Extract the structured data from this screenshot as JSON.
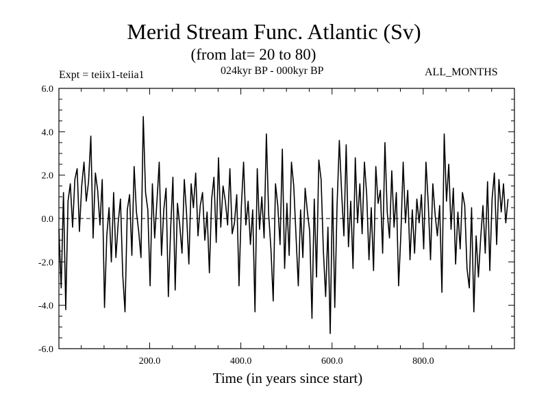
{
  "chart_data": {
    "type": "line",
    "title": "Merid Stream Func. Atlantic (Sv)",
    "subtitle": "(from lat= 20 to 80)",
    "annotations": {
      "left": "Expt = teiix1-teiia1",
      "center": "024kyr BP - 000kyr BP",
      "right": "ALL_MONTHS"
    },
    "xlabel": "Time (in years since start)",
    "ylabel": "",
    "xlim": [
      1,
      1000
    ],
    "ylim": [
      -6,
      6
    ],
    "xticks": [
      200,
      400,
      600,
      800
    ],
    "xtick_labels": [
      "200.0",
      "400.0",
      "600.0",
      "800.0"
    ],
    "yticks": [
      -6,
      -4,
      -2,
      0,
      2,
      4,
      6
    ],
    "ytick_labels": [
      "-6.0",
      "-4.0",
      "-2.0",
      "0.0",
      "2.0",
      "4.0",
      "6.0"
    ],
    "zero_line": true,
    "grid": false,
    "series": [
      {
        "color": "#000000",
        "x_start": 1,
        "x_step": 5,
        "values": [
          -0.5,
          -3.2,
          1.2,
          -4.2,
          0.8,
          1.6,
          -0.4,
          1.8,
          2.3,
          -0.6,
          1.5,
          2.6,
          0.8,
          1.7,
          3.8,
          -0.9,
          2.1,
          1.3,
          -0.3,
          1.8,
          -4.1,
          -0.8,
          0.5,
          -2.0,
          1.2,
          -1.8,
          -0.2,
          0.9,
          -2.6,
          -4.3,
          0.4,
          1.1,
          -1.7,
          2.4,
          0.3,
          -0.6,
          -1.8,
          4.7,
          1.2,
          0.4,
          -3.1,
          1.6,
          -0.9,
          0.8,
          2.6,
          -1.7,
          0.4,
          1.4,
          -3.6,
          -0.5,
          1.9,
          -3.3,
          0.7,
          -0.3,
          -1.6,
          1.8,
          0.2,
          -2.1,
          1.6,
          0.5,
          2.1,
          -0.8,
          0.6,
          1.2,
          -1.0,
          0.3,
          -2.5,
          0.9,
          1.9,
          -1.1,
          2.8,
          -0.4,
          1.5,
          0.8,
          -0.3,
          2.3,
          -0.7,
          -0.2,
          1.1,
          -3.1,
          0.5,
          2.6,
          -0.3,
          0.8,
          -1.2,
          0.4,
          -4.3,
          2.3,
          -0.5,
          1.0,
          -0.9,
          3.9,
          0.2,
          -1.4,
          -3.8,
          1.6,
          0.6,
          -1.2,
          3.2,
          -2.3,
          0.7,
          -1.7,
          2.6,
          1.5,
          -0.8,
          -3.1,
          0.4,
          -1.8,
          1.4,
          0.3,
          -0.6,
          -4.6,
          0.9,
          -2.7,
          2.7,
          1.8,
          -1.5,
          -3.6,
          -0.4,
          -5.3,
          1.4,
          -4.1,
          0.6,
          3.6,
          1.2,
          -0.8,
          3.4,
          -1.3,
          0.8,
          -2.3,
          2.8,
          -0.2,
          1.6,
          -0.7,
          2.6,
          1.1,
          -1.9,
          0.5,
          -2.4,
          2.4,
          0.7,
          1.3,
          -1.6,
          3.5,
          0.3,
          -0.9,
          2.2,
          -0.4,
          1.2,
          -3.1,
          -0.7,
          2.6,
          -0.2,
          1.3,
          -1.9,
          0.4,
          -1.6,
          0.9,
          -0.2,
          1.1,
          -1.4,
          2.6,
          0.7,
          -1.9,
          1.6,
          0.2,
          -0.8,
          0.6,
          -3.4,
          3.9,
          0.8,
          2.5,
          -0.5,
          1.4,
          -2.1,
          0.3,
          -1.4,
          1.2,
          0.6,
          -2.3,
          -3.2,
          0.5,
          -4.3,
          -0.8,
          -2.7,
          -0.9,
          0.6,
          -1.6,
          1.7,
          -2.4,
          0.9,
          2.1,
          -1.2,
          1.8,
          0.3,
          1.6,
          -0.2,
          0.9
        ]
      }
    ]
  }
}
